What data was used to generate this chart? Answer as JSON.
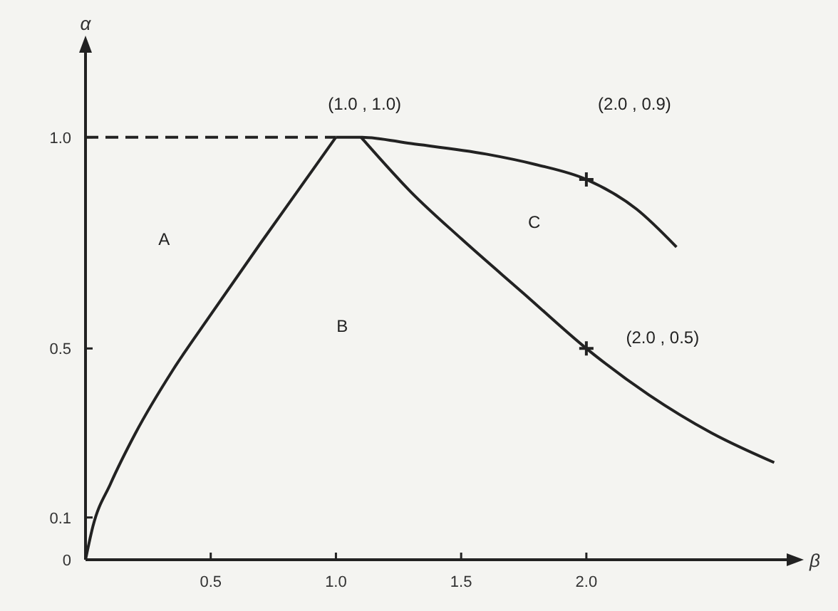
{
  "chart_data": {
    "type": "line",
    "xlabel": "β",
    "ylabel": "α",
    "xlim": [
      0,
      2.8
    ],
    "ylim": [
      0,
      1.2
    ],
    "xticks": [
      0.5,
      {
        "value": 1,
        "label": "1.0"
      },
      1.5,
      {
        "value": 2,
        "label": "2.0"
      }
    ],
    "yticks": [
      0,
      0.1,
      0.5,
      {
        "value": 1,
        "label": "1.0"
      }
    ],
    "series": [
      {
        "color": "#222222",
        "line_style": "dashed",
        "x": [
          0,
          1.0
        ],
        "values": [
          1.0,
          1.0
        ]
      },
      {
        "color": "#222222",
        "x": [
          0,
          0.03,
          0.1,
          0.2,
          0.35,
          0.5,
          0.7,
          0.85,
          1.0
        ],
        "values": [
          0,
          0.08,
          0.18,
          0.3,
          0.45,
          0.58,
          0.75,
          0.875,
          1.0
        ]
      },
      {
        "color": "#222222",
        "x": [
          1.0,
          1.1,
          1.3,
          1.6,
          1.8,
          2.0,
          2.2,
          2.36
        ],
        "values": [
          1.0,
          1.0,
          0.985,
          0.96,
          0.935,
          0.9,
          0.83,
          0.74
        ]
      },
      {
        "color": "#222222",
        "x": [
          1.1,
          1.3,
          1.5,
          1.75,
          2.0,
          2.25,
          2.5,
          2.75
        ],
        "values": [
          1.0,
          0.87,
          0.76,
          0.63,
          0.5,
          0.39,
          0.3,
          0.23
        ]
      },
      {
        "type": "scatter",
        "color": "#222222",
        "marker": "cross",
        "x": [
          2.0,
          2.0
        ],
        "values": [
          0.9,
          0.5
        ]
      }
    ],
    "annotations": [
      "(1.0 , 1.0)",
      "(2.0 , 0.9)",
      "(2.0 , 0.5)",
      "A",
      "B",
      "C"
    ]
  }
}
